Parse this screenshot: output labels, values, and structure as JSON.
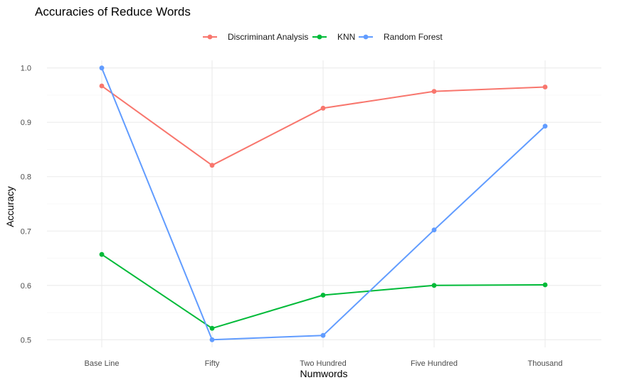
{
  "chart_data": {
    "type": "line",
    "title": "Accuracies of Reduce Words",
    "xlabel": "Numwords",
    "ylabel": "Accuracy",
    "categories": [
      "Base Line",
      "Fifty",
      "Two Hundred",
      "Five Hundred",
      "Thousand"
    ],
    "yticks": [
      "0.5",
      "0.6",
      "0.7",
      "0.8",
      "0.9",
      "1.0"
    ],
    "ylim": [
      0.486,
      1.014
    ],
    "grid": true,
    "legend_position": "top",
    "series": [
      {
        "name": "Discriminant Analysis",
        "color": "#F8766D",
        "values": [
          0.967,
          0.821,
          0.926,
          0.957,
          0.965
        ]
      },
      {
        "name": "KNN",
        "color": "#00BA38",
        "values": [
          0.657,
          0.521,
          0.582,
          0.6,
          0.601
        ]
      },
      {
        "name": "Random Forest",
        "color": "#619CFF",
        "values": [
          1.0,
          0.5,
          0.508,
          0.702,
          0.893
        ]
      }
    ]
  }
}
